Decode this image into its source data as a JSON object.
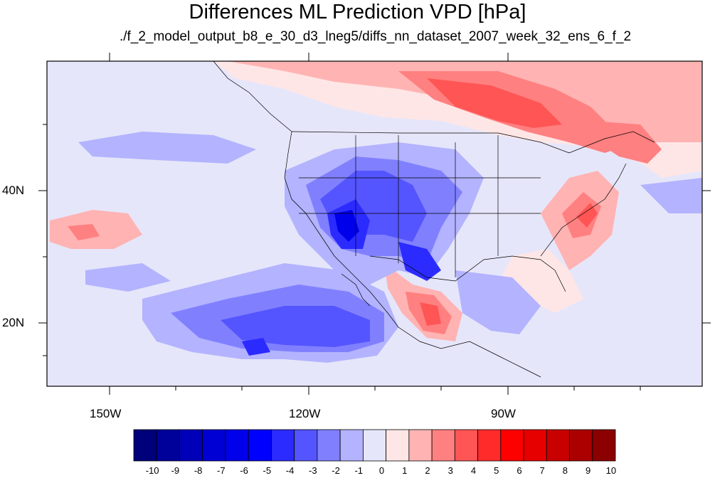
{
  "title": "Differences ML Prediction VPD [hPa]",
  "subtitle": "./f_2_model_output_b8_e_30_d3_lneg5/diffs_nn_dataset_2007_week_32_ens_6_f_2",
  "axes": {
    "lat_labels": [
      "40N",
      "20N"
    ],
    "lon_labels": [
      "150W",
      "120W",
      "90W"
    ]
  },
  "map": {
    "projection": "cylindrical equidistant",
    "lon_range": [
      -160,
      -62
    ],
    "lat_range": [
      10,
      59
    ],
    "region": "North America and eastern Pacific",
    "field": "VPD difference, ML prediction"
  },
  "colorbar": {
    "labels": [
      "-10",
      "-9",
      "-8",
      "-7",
      "-6",
      "-5",
      "-4",
      "-3",
      "-2",
      "-1",
      "0",
      "1",
      "2",
      "3",
      "4",
      "5",
      "6",
      "7",
      "8",
      "9",
      "10"
    ],
    "colors": [
      "#00007a",
      "#00009a",
      "#0000b8",
      "#0000d4",
      "#0000ea",
      "#0000ff",
      "#2b2bff",
      "#5555ff",
      "#8080ff",
      "#b3b3ff",
      "#e6e6fa",
      "#ffe6e6",
      "#ffb3b3",
      "#ff8080",
      "#ff5555",
      "#ff2b2b",
      "#ff0000",
      "#e60000",
      "#c80000",
      "#aa0000",
      "#8b0000"
    ]
  }
}
